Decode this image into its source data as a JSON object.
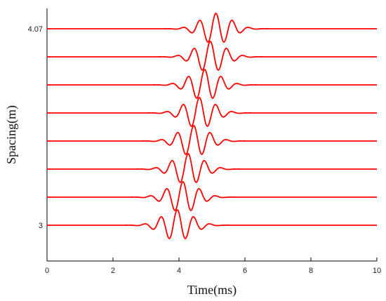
{
  "chart_data": {
    "type": "line",
    "xlabel": "Time(ms)",
    "ylabel": "Spacing(m)",
    "xlim": [
      0,
      10
    ],
    "x_ticks": [
      "0",
      "2",
      "4",
      "6",
      "8",
      "10"
    ],
    "y_tick_labels": [
      "3",
      "4.07"
    ],
    "grid": false,
    "line_color": "#ff0000",
    "wavelet": {
      "center_frequency_khz": 2.0,
      "decay_width_ms": 0.45
    },
    "series": [
      {
        "offset": 0,
        "arrival_ms": 3.95,
        "amplitude": 1.0
      },
      {
        "offset": 1,
        "arrival_ms": 4.12,
        "amplitude": 1.0
      },
      {
        "offset": 2,
        "arrival_ms": 4.28,
        "amplitude": 1.0
      },
      {
        "offset": 3,
        "arrival_ms": 4.45,
        "amplitude": 1.0
      },
      {
        "offset": 4,
        "arrival_ms": 4.62,
        "amplitude": 1.0
      },
      {
        "offset": 5,
        "arrival_ms": 4.78,
        "amplitude": 1.0
      },
      {
        "offset": 6,
        "arrival_ms": 4.95,
        "amplitude": 1.0
      },
      {
        "offset": 7,
        "arrival_ms": 5.12,
        "amplitude": 1.0
      }
    ]
  }
}
